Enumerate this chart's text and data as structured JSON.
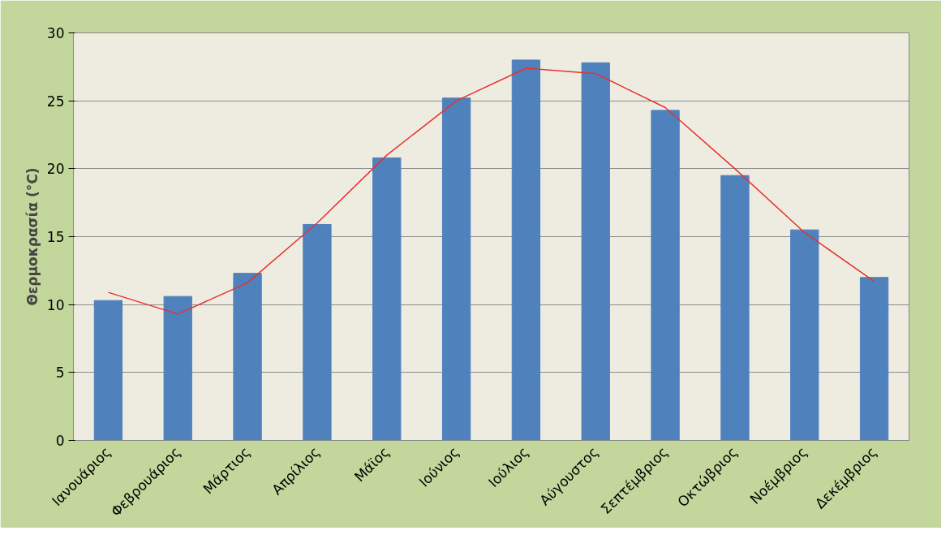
{
  "chart_data": {
    "type": "bar",
    "ylabel": "Θερμοκρασία (°C)",
    "categories": [
      "Ιανουάριος",
      "Φεβρουάριος",
      "Μάρτιος",
      "Απρίλιος",
      "Μάϊος",
      "Ιούνιος",
      "Ιούλιος",
      "Αύγουστος",
      "Σεπτέμβριος",
      "Οκτώβριος",
      "Νοέμβριος",
      "Δεκέμβριος"
    ],
    "series": [
      {
        "color": "#4f81bd",
        "values": [
          10.3,
          10.6,
          12.3,
          15.9,
          20.8,
          25.2,
          28.0,
          27.8,
          24.3,
          19.5,
          15.5,
          12.0
        ]
      },
      {
        "type": "line",
        "color": "#e8312f",
        "values": [
          10.9,
          9.3,
          11.6,
          16.0,
          21.0,
          25.0,
          27.4,
          27.0,
          24.5,
          20.0,
          15.3,
          11.7
        ]
      }
    ],
    "ylim": [
      0,
      30
    ],
    "yticks": [
      0,
      5,
      10,
      15,
      20,
      25,
      30
    ],
    "grid": "y"
  }
}
